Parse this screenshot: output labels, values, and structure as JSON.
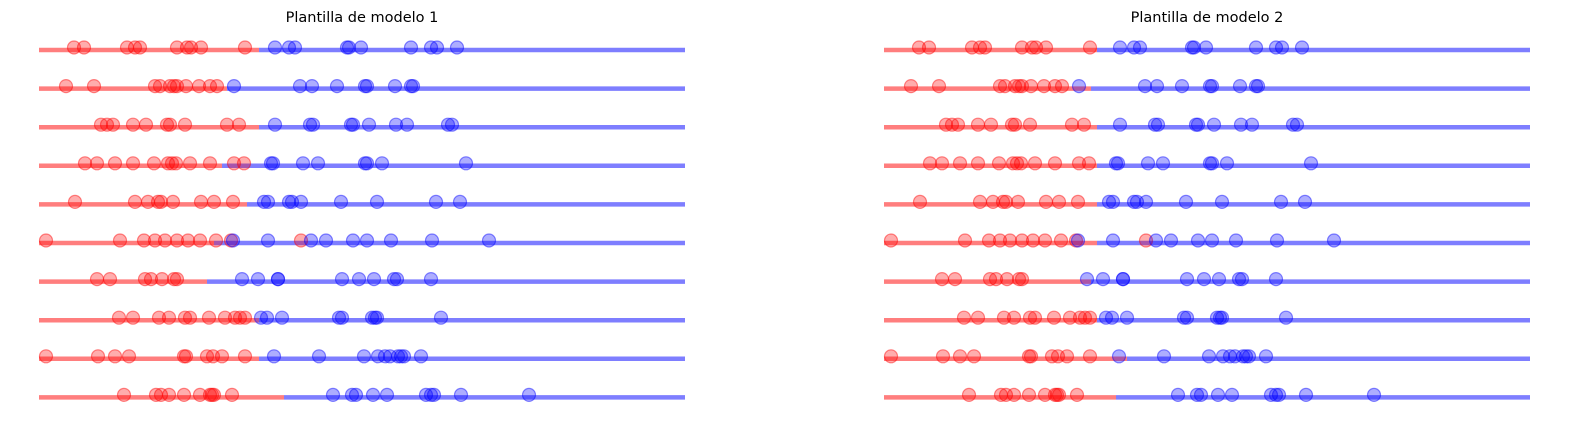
{
  "colors": {
    "class_a": "#ff0000",
    "class_b": "#0000ff"
  },
  "chart_data": [
    {
      "type": "scatter",
      "title": "Plantilla de modelo 1",
      "xlim": [
        0,
        646
      ],
      "rows": [
        {
          "split": 220,
          "red": [
            35,
            45,
            88,
            96,
            101,
            138,
            148,
            152,
            162,
            206
          ],
          "blue": [
            236,
            250,
            256,
            308,
            310,
            322,
            372,
            392,
            398,
            418
          ]
        },
        {
          "split": 188,
          "red": [
            27,
            55,
            116,
            121,
            131,
            135,
            138,
            147,
            160,
            171,
            178
          ],
          "blue": [
            195,
            261,
            273,
            298,
            326,
            328,
            356,
            372,
            374
          ]
        },
        {
          "split": 220,
          "red": [
            62,
            68,
            74,
            94,
            107,
            128,
            131,
            146,
            188,
            200
          ],
          "blue": [
            236,
            271,
            274,
            312,
            314,
            330,
            357,
            368,
            409,
            413
          ]
        },
        {
          "split": 183,
          "red": [
            46,
            58,
            76,
            94,
            115,
            129,
            133,
            137,
            151,
            171,
            195,
            205
          ],
          "blue": [
            232,
            234,
            264,
            279,
            326,
            328,
            343,
            427
          ]
        },
        {
          "split": 208,
          "red": [
            36,
            96,
            109,
            119,
            122,
            134,
            162,
            175,
            194
          ],
          "blue": [
            225,
            229,
            250,
            253,
            262,
            302,
            338,
            397,
            421
          ]
        },
        {
          "split": 175,
          "red": [
            7,
            81,
            105,
            116,
            126,
            138,
            149,
            161,
            177,
            192,
            262
          ],
          "blue": [
            194,
            229,
            272,
            287,
            314,
            328,
            352,
            393,
            450
          ]
        },
        {
          "split": 168,
          "red": [
            58,
            71,
            106,
            112,
            123,
            135,
            138
          ],
          "blue": [
            203,
            219,
            239,
            239,
            303,
            320,
            335,
            355,
            358,
            392
          ]
        },
        {
          "split": 220,
          "red": [
            80,
            94,
            120,
            130,
            146,
            151,
            170,
            186,
            196,
            201,
            206
          ],
          "blue": [
            222,
            228,
            243,
            300,
            303,
            333,
            336,
            338,
            402
          ]
        },
        {
          "split": 220,
          "red": [
            7,
            59,
            76,
            90,
            145,
            147,
            168,
            174,
            183,
            206
          ],
          "blue": [
            235,
            280,
            325,
            339,
            346,
            351,
            359,
            362,
            365,
            382
          ]
        },
        {
          "split": 245,
          "red": [
            85,
            117,
            122,
            130,
            145,
            161,
            171,
            173,
            175,
            193
          ],
          "blue": [
            294,
            313,
            317,
            334,
            348,
            387,
            392,
            395,
            422,
            490
          ]
        }
      ]
    },
    {
      "type": "scatter",
      "title": "Plantilla de modelo 2",
      "xlim": [
        0,
        646
      ],
      "rows": [
        {
          "split": 213,
          "red": [
            35,
            45,
            88,
            96,
            101,
            138,
            148,
            152,
            162,
            206
          ],
          "blue": [
            236,
            250,
            256,
            308,
            310,
            322,
            372,
            392,
            398,
            418
          ]
        },
        {
          "split": 207,
          "red": [
            27,
            55,
            116,
            121,
            131,
            135,
            138,
            147,
            160,
            171,
            178
          ],
          "blue": [
            195,
            261,
            273,
            298,
            326,
            328,
            356,
            372,
            374
          ]
        },
        {
          "split": 213,
          "red": [
            62,
            68,
            74,
            94,
            107,
            128,
            131,
            146,
            188,
            200
          ],
          "blue": [
            236,
            271,
            274,
            312,
            314,
            330,
            357,
            368,
            409,
            413
          ]
        },
        {
          "split": 213,
          "red": [
            46,
            58,
            76,
            94,
            115,
            129,
            133,
            137,
            151,
            171,
            195,
            205
          ],
          "blue": [
            232,
            234,
            264,
            279,
            326,
            328,
            343,
            427
          ]
        },
        {
          "split": 213,
          "red": [
            36,
            96,
            109,
            119,
            122,
            134,
            162,
            175,
            194
          ],
          "blue": [
            225,
            229,
            250,
            253,
            262,
            302,
            338,
            397,
            421
          ]
        },
        {
          "split": 213,
          "red": [
            7,
            81,
            105,
            116,
            126,
            138,
            149,
            161,
            177,
            192,
            262
          ],
          "blue": [
            194,
            229,
            272,
            287,
            314,
            328,
            352,
            393,
            450
          ]
        },
        {
          "split": 207,
          "red": [
            58,
            71,
            106,
            112,
            123,
            135,
            138
          ],
          "blue": [
            203,
            219,
            239,
            239,
            303,
            320,
            335,
            355,
            358,
            392
          ]
        },
        {
          "split": 213,
          "red": [
            80,
            94,
            120,
            130,
            146,
            151,
            170,
            186,
            196,
            201,
            206
          ],
          "blue": [
            222,
            228,
            243,
            300,
            303,
            333,
            336,
            338,
            402
          ]
        },
        {
          "split": 243,
          "red": [
            7,
            59,
            76,
            90,
            145,
            147,
            168,
            174,
            183,
            206
          ],
          "blue": [
            235,
            280,
            325,
            339,
            346,
            351,
            359,
            362,
            365,
            382
          ]
        },
        {
          "split": 232,
          "red": [
            85,
            117,
            122,
            130,
            145,
            161,
            171,
            173,
            175,
            193
          ],
          "blue": [
            294,
            313,
            317,
            334,
            348,
            387,
            392,
            395,
            422,
            490
          ]
        }
      ]
    }
  ]
}
